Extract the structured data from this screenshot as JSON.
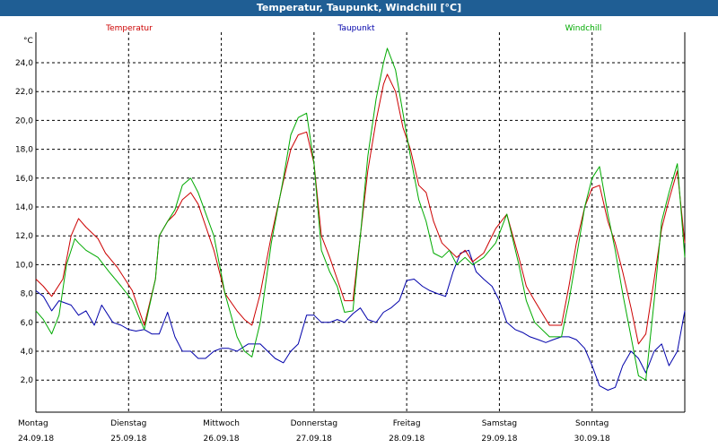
{
  "window": {
    "title": "Temperatur, Taupunkt, Windchill [°C]"
  },
  "colors": {
    "title_bar": "#1f5e94",
    "title_text": "#ffffff",
    "temperature": "#cc0000",
    "dewpoint": "#0000aa",
    "windchill": "#00aa00"
  },
  "chart_data": {
    "type": "line",
    "title": "Temperatur, Taupunkt, Windchill [°C]",
    "ylabel": "°C",
    "ylim": [
      0,
      26
    ],
    "yticks": [
      2.0,
      4.0,
      6.0,
      8.0,
      10.0,
      12.0,
      14.0,
      16.0,
      18.0,
      20.0,
      22.0,
      24.0
    ],
    "ytick_labels": [
      "2,0",
      "4,0",
      "6,0",
      "8,0",
      "10,0",
      "12,0",
      "14,0",
      "16,0",
      "18,0",
      "20,0",
      "22,0",
      "24,0"
    ],
    "xlim": [
      0,
      7
    ],
    "x_unit": "days since 24.09.18 00:00",
    "day_labels": [
      {
        "day": "Montag",
        "date": "24.09.18"
      },
      {
        "day": "Dienstag",
        "date": "25.09.18"
      },
      {
        "day": "Mittwoch",
        "date": "26.09.18"
      },
      {
        "day": "Donnerstag",
        "date": "27.09.18"
      },
      {
        "day": "Freitag",
        "date": "28.09.18"
      },
      {
        "day": "Samstag",
        "date": "29.09.18"
      },
      {
        "day": "Sonntag",
        "date": "30.09.18"
      }
    ],
    "grid": true,
    "legend_position": "top",
    "series": [
      {
        "name": "Temperatur",
        "color": "#cc0000",
        "x": [
          0,
          0.08,
          0.17,
          0.29,
          0.38,
          0.46,
          0.54,
          0.67,
          0.75,
          0.88,
          0.96,
          1.04,
          1.17,
          1.29,
          1.33,
          1.42,
          1.5,
          1.58,
          1.67,
          1.75,
          1.92,
          2.04,
          2.17,
          2.25,
          2.33,
          2.42,
          2.54,
          2.67,
          2.75,
          2.83,
          2.92,
          3.0,
          3.08,
          3.17,
          3.25,
          3.33,
          3.42,
          3.5,
          3.58,
          3.67,
          3.75,
          3.79,
          3.88,
          3.96,
          4.04,
          4.13,
          4.21,
          4.29,
          4.38,
          4.46,
          4.54,
          4.63,
          4.71,
          4.83,
          4.96,
          5.08,
          5.21,
          5.29,
          5.38,
          5.54,
          5.67,
          5.75,
          5.83,
          5.92,
          6.0,
          6.08,
          6.17,
          6.25,
          6.33,
          6.42,
          6.5,
          6.58,
          6.67,
          6.75,
          6.83,
          6.92,
          7.0
        ],
        "y": [
          9.0,
          8.5,
          7.8,
          9.0,
          12.0,
          13.2,
          12.6,
          11.8,
          10.8,
          9.8,
          9.0,
          8.2,
          5.8,
          9.0,
          12.0,
          13.0,
          13.5,
          14.5,
          15.0,
          14.2,
          11.0,
          8.0,
          6.8,
          6.2,
          5.8,
          8.0,
          12.0,
          15.8,
          18.0,
          19.0,
          19.2,
          17.0,
          12.0,
          10.5,
          9.0,
          7.5,
          7.5,
          12.0,
          16.5,
          20.0,
          22.5,
          23.2,
          22.0,
          19.5,
          18.0,
          15.5,
          15.0,
          13.0,
          11.5,
          11.0,
          10.5,
          11.0,
          10.2,
          10.8,
          12.5,
          13.5,
          10.5,
          8.5,
          7.5,
          5.8,
          5.8,
          8.5,
          11.5,
          14.0,
          15.3,
          15.5,
          13.0,
          11.5,
          9.5,
          7.0,
          4.5,
          5.2,
          9.0,
          12.5,
          14.5,
          16.5,
          11.5
        ]
      },
      {
        "name": "Taupunkt",
        "color": "#0000aa",
        "x": [
          0,
          0.08,
          0.17,
          0.25,
          0.38,
          0.46,
          0.54,
          0.63,
          0.71,
          0.83,
          0.92,
          1.0,
          1.08,
          1.17,
          1.25,
          1.33,
          1.42,
          1.5,
          1.58,
          1.67,
          1.75,
          1.83,
          1.92,
          2.0,
          2.08,
          2.17,
          2.29,
          2.42,
          2.5,
          2.58,
          2.67,
          2.75,
          2.83,
          2.92,
          3.0,
          3.08,
          3.17,
          3.25,
          3.33,
          3.42,
          3.5,
          3.58,
          3.67,
          3.75,
          3.83,
          3.92,
          4.0,
          4.08,
          4.17,
          4.25,
          4.33,
          4.42,
          4.5,
          4.58,
          4.67,
          4.75,
          4.83,
          4.92,
          5.0,
          5.08,
          5.17,
          5.25,
          5.33,
          5.42,
          5.5,
          5.58,
          5.67,
          5.75,
          5.83,
          5.92,
          6.0,
          6.08,
          6.17,
          6.25,
          6.33,
          6.42,
          6.5,
          6.58,
          6.67,
          6.75,
          6.83,
          6.92,
          7.0
        ],
        "y": [
          8.2,
          7.8,
          6.8,
          7.5,
          7.2,
          6.5,
          6.8,
          5.8,
          7.2,
          6.0,
          5.8,
          5.5,
          5.4,
          5.5,
          5.2,
          5.2,
          6.7,
          5.0,
          4.0,
          4.0,
          3.5,
          3.5,
          4.0,
          4.2,
          4.2,
          4.0,
          4.5,
          4.5,
          4.0,
          3.5,
          3.2,
          4.0,
          4.5,
          6.5,
          6.5,
          6.0,
          6.0,
          6.2,
          6.0,
          6.6,
          7.0,
          6.2,
          6.0,
          6.7,
          7.0,
          7.5,
          8.9,
          9.0,
          8.5,
          8.2,
          8.0,
          7.8,
          9.5,
          10.8,
          11.0,
          9.5,
          9.0,
          8.5,
          7.5,
          6.0,
          5.5,
          5.3,
          5.0,
          4.8,
          4.6,
          4.8,
          5.0,
          5.0,
          4.8,
          4.2,
          3.0,
          1.6,
          1.3,
          1.5,
          3.0,
          4.0,
          3.5,
          2.5,
          4.0,
          4.5,
          3.0,
          4.0,
          6.8
        ]
      },
      {
        "name": "Windchill",
        "color": "#00aa00",
        "x": [
          0,
          0.08,
          0.17,
          0.25,
          0.33,
          0.42,
          0.46,
          0.54,
          0.67,
          0.79,
          0.92,
          1.04,
          1.17,
          1.29,
          1.33,
          1.42,
          1.5,
          1.58,
          1.67,
          1.75,
          1.92,
          2.04,
          2.17,
          2.25,
          2.33,
          2.42,
          2.54,
          2.67,
          2.75,
          2.83,
          2.92,
          3.0,
          3.08,
          3.17,
          3.25,
          3.33,
          3.42,
          3.5,
          3.58,
          3.67,
          3.75,
          3.79,
          3.88,
          3.96,
          4.04,
          4.13,
          4.21,
          4.29,
          4.38,
          4.46,
          4.54,
          4.63,
          4.71,
          4.83,
          4.96,
          5.08,
          5.21,
          5.29,
          5.38,
          5.54,
          5.67,
          5.75,
          5.83,
          5.92,
          6.0,
          6.08,
          6.17,
          6.25,
          6.33,
          6.42,
          6.5,
          6.58,
          6.67,
          6.75,
          6.83,
          6.92,
          7.0
        ],
        "y": [
          6.8,
          6.2,
          5.2,
          6.5,
          10.0,
          11.8,
          11.5,
          11.0,
          10.5,
          9.5,
          8.5,
          7.5,
          5.5,
          9.0,
          12.0,
          13.0,
          13.8,
          15.5,
          16.0,
          15.0,
          12.0,
          8.0,
          5.0,
          4.0,
          3.6,
          6.0,
          11.5,
          16.0,
          19.0,
          20.2,
          20.5,
          17.0,
          11.0,
          9.5,
          8.5,
          6.7,
          6.8,
          12.0,
          17.5,
          21.5,
          24.0,
          25.0,
          23.5,
          20.5,
          17.5,
          14.5,
          13.0,
          10.8,
          10.5,
          11.0,
          10.0,
          10.5,
          10.0,
          10.5,
          11.5,
          13.5,
          10.0,
          7.5,
          6.0,
          5.0,
          5.0,
          7.5,
          10.5,
          14.0,
          16.0,
          16.8,
          13.5,
          11.0,
          8.0,
          5.0,
          2.3,
          2.0,
          7.5,
          13.0,
          15.0,
          17.0,
          10.5
        ]
      }
    ]
  }
}
